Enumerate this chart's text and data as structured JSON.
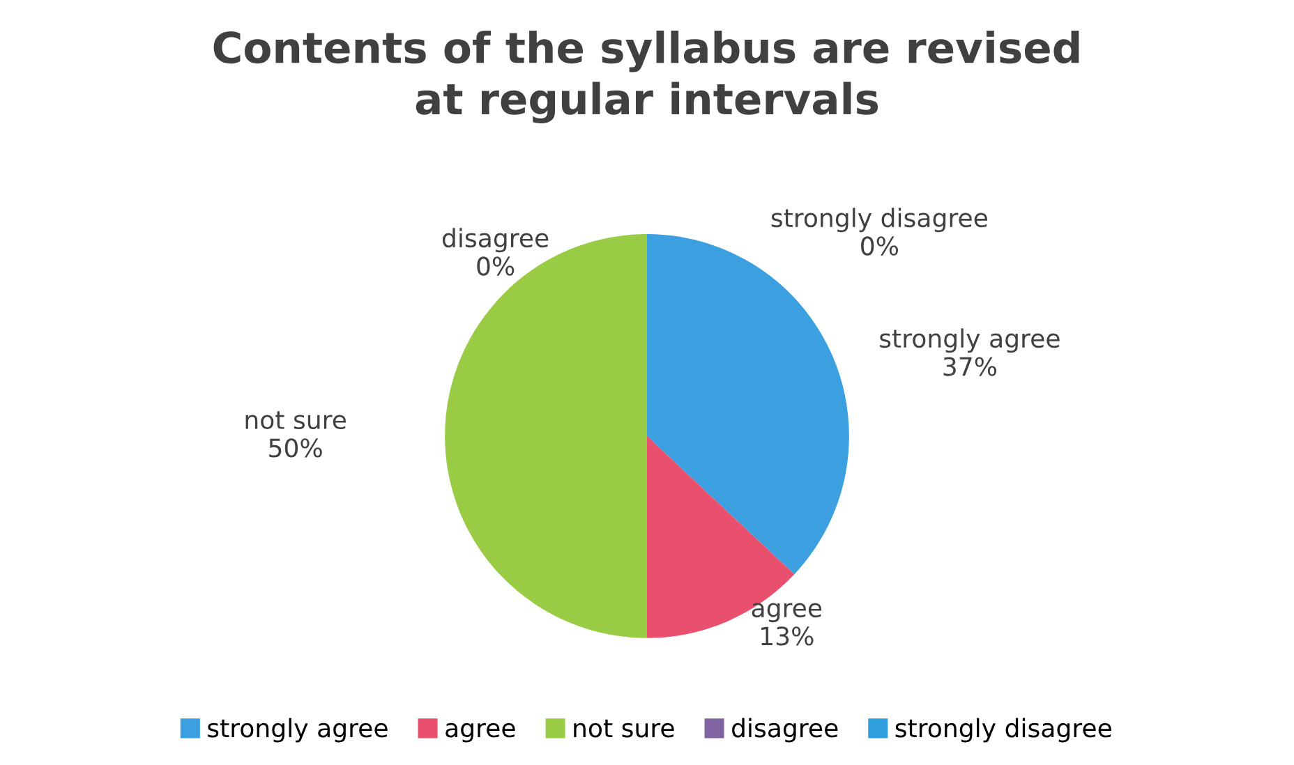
{
  "chart_data": {
    "type": "pie",
    "title": "Contents of the syllabus are revised\nat regular intervals",
    "categories": [
      "strongly agree",
      "agree",
      "not sure",
      "disagree",
      "strongly disagree"
    ],
    "values": [
      37,
      13,
      50,
      0,
      0
    ],
    "value_labels": [
      "37%",
      "13%",
      "50%",
      "0%",
      "0%"
    ],
    "colors": [
      "#3b9fe0",
      "#e8506e",
      "#9acb45",
      "#8064a2",
      "#2e9fdc"
    ],
    "legend": "bottom"
  }
}
